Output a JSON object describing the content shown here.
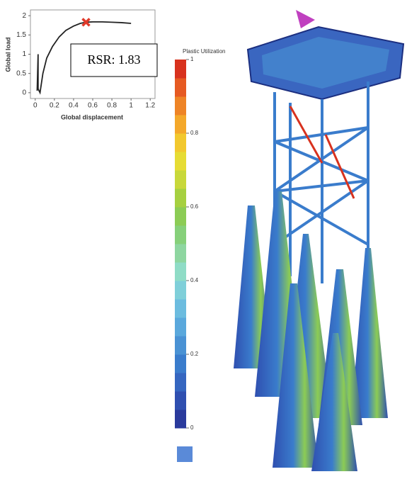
{
  "chart_data": [
    {
      "type": "line",
      "x": [
        0.02,
        0.03,
        0.03,
        0.05,
        0.08,
        0.12,
        0.18,
        0.25,
        0.32,
        0.4,
        0.47,
        0.53,
        0.6,
        0.7,
        0.8,
        0.9,
        1.0
      ],
      "values": [
        0.05,
        1.0,
        0.1,
        0.0,
        0.5,
        0.9,
        1.2,
        1.45,
        1.62,
        1.73,
        1.8,
        1.83,
        1.84,
        1.84,
        1.83,
        1.82,
        1.8
      ],
      "color": "#222222",
      "xlabel": "Global displacement",
      "ylabel": "Global load",
      "xlim": [
        -0.05,
        1.25
      ],
      "ylim": [
        -0.15,
        2.15
      ],
      "xticks": [
        0,
        0.2,
        0.4,
        0.6,
        0.8,
        1,
        1.2
      ],
      "yticks": [
        0,
        0.5,
        1,
        1.5,
        2
      ],
      "marker": {
        "x": 0.53,
        "y": 1.83,
        "color": "#e03a2a"
      },
      "annotation": "RSR: 1.83"
    },
    {
      "type": "colorbar",
      "title": "Plastic Utilization",
      "ylim": [
        0,
        1
      ],
      "yticks": [
        0,
        0.2,
        0.4,
        0.6,
        0.8,
        1
      ],
      "colors": [
        "#2a3a9c",
        "#2f4fb0",
        "#3566c0",
        "#3a7ccc",
        "#4a92d4",
        "#5aa8dc",
        "#6cbcdf",
        "#7fcfd9",
        "#8fdcc6",
        "#8ed6a0",
        "#86d07a",
        "#8ccc55",
        "#a6d040",
        "#c8d83a",
        "#e6dc34",
        "#f2c82e",
        "#f4a82a",
        "#ee8426",
        "#e65a22",
        "#d8321e"
      ]
    }
  ]
}
